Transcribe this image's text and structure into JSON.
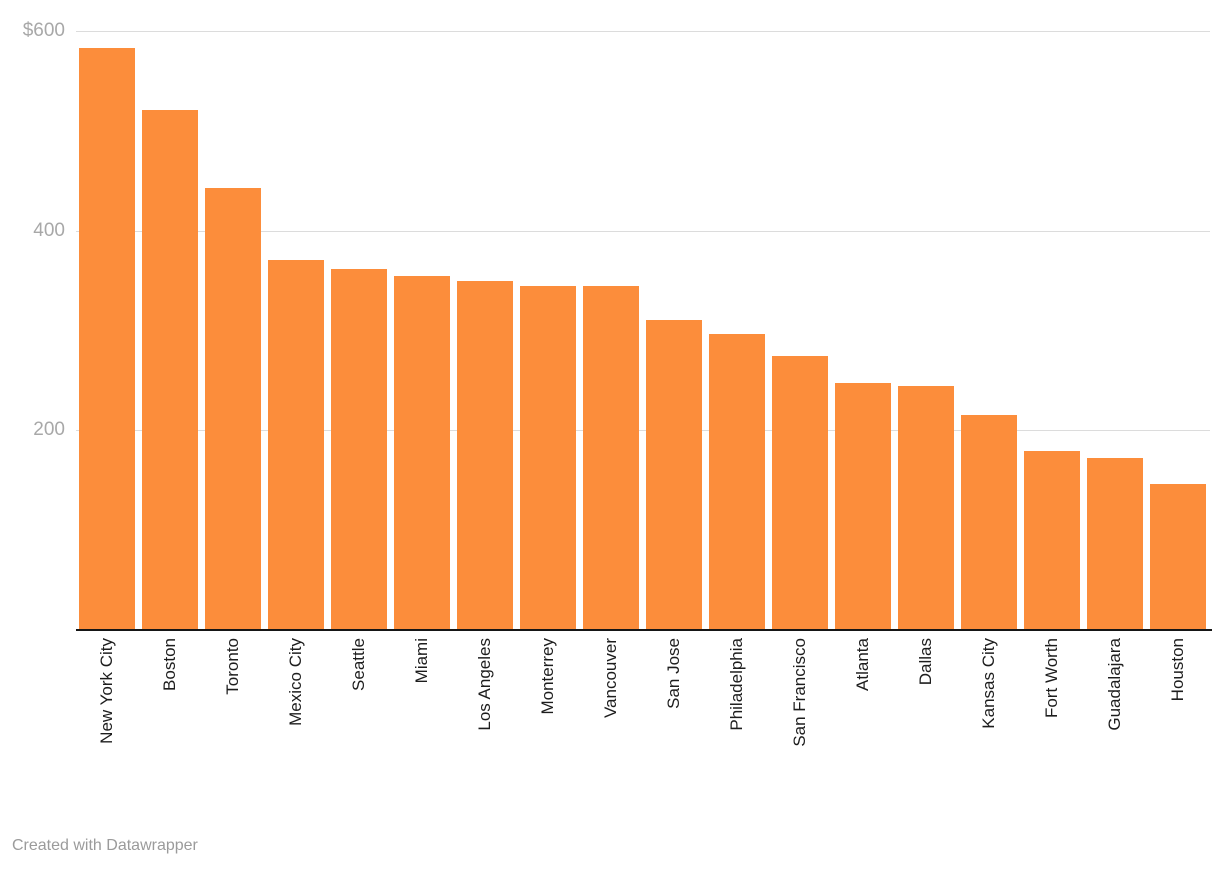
{
  "chart_data": {
    "type": "bar",
    "categories": [
      "New York City",
      "Boston",
      "Toronto",
      "Mexico City",
      "Seattle",
      "Miami",
      "Los Angeles",
      "Monterrey",
      "Vancouver",
      "San Jose",
      "Philadelphia",
      "San Francisco",
      "Atlanta",
      "Dallas",
      "Kansas City",
      "Fort Worth",
      "Guadalajara",
      "Houston"
    ],
    "values": [
      582,
      520,
      442,
      370,
      361,
      354,
      349,
      344,
      344,
      310,
      295,
      273,
      246,
      243,
      214,
      178,
      171,
      145
    ],
    "title": "",
    "xlabel": "",
    "ylabel": "",
    "ylim": [
      0,
      600
    ],
    "yticks": [
      {
        "value": 600,
        "label": "$600"
      },
      {
        "value": 400,
        "label": "400"
      },
      {
        "value": 200,
        "label": "200"
      }
    ],
    "grid": true,
    "legend": "none",
    "bar_color": "#fc8d3b"
  },
  "colors": {
    "background": "#ffffff",
    "bar": "#fc8d3b",
    "gridline": "#dcdcdc",
    "axis_line": "#161616",
    "y_tick_label": "#a8a8a8",
    "x_label": "#1d1d1d",
    "footer_text": "#9b9b9b"
  },
  "footer": {
    "credit": "Created with Datawrapper"
  }
}
